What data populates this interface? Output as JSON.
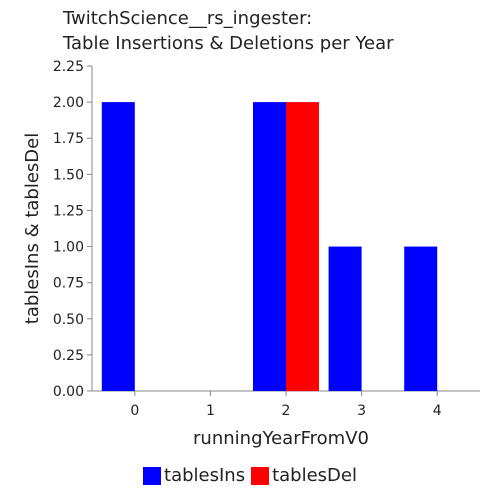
{
  "title_line1": "TwitchScience__rs_ingester:",
  "title_line2": "Table Insertions & Deletions per Year",
  "chart_data": {
    "type": "bar",
    "title": "TwitchScience__rs_ingester: Table Insertions & Deletions per Year",
    "xlabel": "runningYearFromV0",
    "ylabel": "tablesIns & tablesDel",
    "categories": [
      "0",
      "1",
      "2",
      "3",
      "4"
    ],
    "ylim": [
      0,
      2.25
    ],
    "yticks": [
      "0.00",
      "0.25",
      "0.50",
      "0.75",
      "1.00",
      "1.25",
      "1.50",
      "1.75",
      "2.00",
      "2.25"
    ],
    "series": [
      {
        "name": "tablesIns",
        "color": "#0000ff",
        "values": [
          2,
          0,
          2,
          1,
          1
        ]
      },
      {
        "name": "tablesDel",
        "color": "#ff0000",
        "values": [
          0,
          0,
          2,
          0,
          0
        ]
      }
    ],
    "legend": "bottom",
    "grid": false
  }
}
